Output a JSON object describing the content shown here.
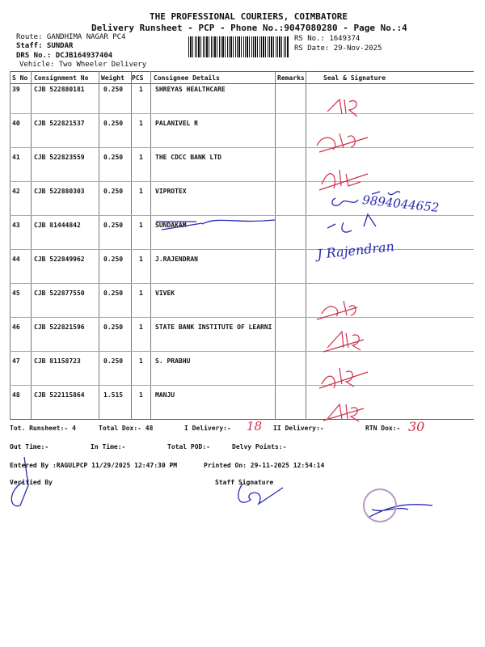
{
  "header": {
    "company": "THE PROFESSIONAL COURIERS, COIMBATORE",
    "subtitle": "Delivery Runsheet - PCP - Phone No.:9047080280 - Page No.:4",
    "route": "Route: GANDHIMA NAGAR PC4",
    "staff": "Staff: SUNDAR",
    "drs": "DRS No.: DCJB164937404",
    "vehicle": "Vehicle: Two Wheeler Delivery",
    "rs_no": "RS No.: 1649374",
    "rs_date": "RS Date: 29-Nov-2025"
  },
  "table": {
    "columns": [
      "S No",
      "Consignment No",
      "Weight",
      "PCS",
      "Consignee Details",
      "Remarks",
      "Seal & Signature"
    ],
    "rows": [
      {
        "sno": "39",
        "cons": "CJB 522880181",
        "weight": "0.250",
        "pcs": "1",
        "name": "SHREYAS HEALTHCARE"
      },
      {
        "sno": "40",
        "cons": "CJB 522821537",
        "weight": "0.250",
        "pcs": "1",
        "name": "PALANIVEL R"
      },
      {
        "sno": "41",
        "cons": "CJB 522823559",
        "weight": "0.250",
        "pcs": "1",
        "name": "THE CDCC BANK LTD"
      },
      {
        "sno": "42",
        "cons": "CJB 522880303",
        "weight": "0.250",
        "pcs": "1",
        "name": "VIPROTEX"
      },
      {
        "sno": "43",
        "cons": "CJB 81444842",
        "weight": "0.250",
        "pcs": "1",
        "name": "SUNDAKAM"
      },
      {
        "sno": "44",
        "cons": "CJB 522849962",
        "weight": "0.250",
        "pcs": "1",
        "name": "J.RAJENDRAN"
      },
      {
        "sno": "45",
        "cons": "CJB 522877550",
        "weight": "0.250",
        "pcs": "1",
        "name": "VIVEK"
      },
      {
        "sno": "46",
        "cons": "CJB 522821596",
        "weight": "0.250",
        "pcs": "1",
        "name": "STATE BANK INSTITUTE OF LEARNI"
      },
      {
        "sno": "47",
        "cons": "CJB 81158723",
        "weight": "0.250",
        "pcs": "1",
        "name": "S. PRABHU"
      },
      {
        "sno": "48",
        "cons": "CJB 522115864",
        "weight": "1.515",
        "pcs": "1",
        "name": "MANJU"
      }
    ]
  },
  "footer": {
    "tot_runsheet": "Tot. Runsheet:- 4",
    "total_dox": "Total Dox:-   48",
    "i_delivery": "I Delivery:-",
    "ii_delivery": "II Delivery:-",
    "rtn_dox": "RTN Dox:-",
    "out_time": "Out Time:-",
    "in_time": "In Time:-",
    "total_pod": "Total POD:-",
    "delvy_points": "Delvy Points:-",
    "entered_by": "Entered By :RAGULPCP 11/29/2025 12:47:30 PM",
    "printed_on": "Printed On: 29-11-2025 12:54:14",
    "verified_by": "Verified By",
    "staff_signature": "Staff Signature"
  },
  "handwritten": {
    "i_delivery_value": "18",
    "rtn_value": "30",
    "phone": "9894044652",
    "rajendran": "J Rajendran"
  },
  "colors": {
    "red_ink": "#d0304a",
    "blue_ink": "#2a2ab0"
  }
}
